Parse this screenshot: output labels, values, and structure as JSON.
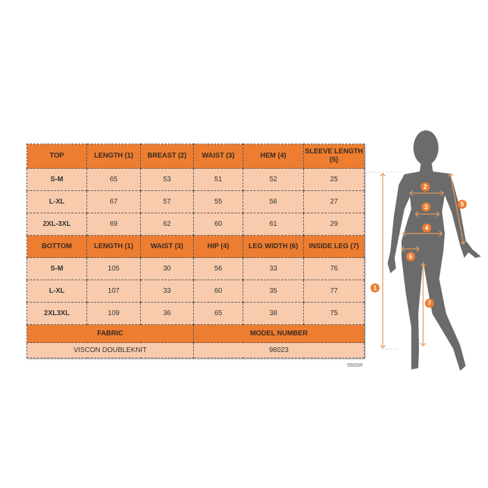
{
  "top": {
    "headers": [
      "TOP",
      "LENGTH (1)",
      "BREAST (2)",
      "WAIST (3)",
      "HEM (4)",
      "SLEEVE LENGTH (5)"
    ],
    "rows": [
      [
        "S-M",
        "65",
        "53",
        "51",
        "52",
        "25"
      ],
      [
        "L-XL",
        "67",
        "57",
        "55",
        "56",
        "27"
      ],
      [
        "2XL-3XL",
        "69",
        "62",
        "60",
        "61",
        "29"
      ]
    ]
  },
  "bottom": {
    "headers": [
      "BOTTOM",
      "LENGTH (1)",
      "WAIST (3)",
      "HIP (4)",
      "LEG WIDTH (6)",
      "INSIDE LEG (7)"
    ],
    "rows": [
      [
        "S-M",
        "105",
        "30",
        "56",
        "33",
        "76"
      ],
      [
        "L-XL",
        "107",
        "33",
        "60",
        "35",
        "77"
      ],
      [
        "2XL3XL",
        "109",
        "36",
        "65",
        "38",
        "75"
      ]
    ]
  },
  "fabric": {
    "label": "FABRIC",
    "value": "VISCON DOUBLEKNIT"
  },
  "model": {
    "label": "MODEL NUMBER",
    "value": "98023"
  },
  "weight": "550GR",
  "markers": [
    "1",
    "2",
    "3",
    "4",
    "5",
    "6",
    "7"
  ],
  "colors": {
    "accent": "#ed7d31",
    "cell": "#f8cbad",
    "silhouette": "#6b6b6b"
  }
}
